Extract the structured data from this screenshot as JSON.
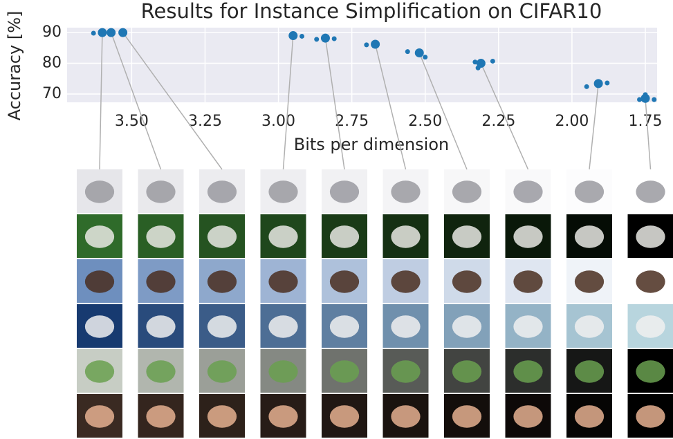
{
  "chart_data": {
    "type": "scatter",
    "title": "Results for Instance Simplification on CIFAR10",
    "x_label": "Bits per dimension",
    "y_label": "Accuracy [%]",
    "xlim": [
      3.72,
      1.71
    ],
    "ylim": [
      67.3,
      91.6
    ],
    "xticks": [
      {
        "value": 3.5,
        "label": "3.50"
      },
      {
        "value": 3.25,
        "label": "3.25"
      },
      {
        "value": 3.0,
        "label": "3.00"
      },
      {
        "value": 2.75,
        "label": "2.75"
      },
      {
        "value": 2.5,
        "label": "2.50"
      },
      {
        "value": 2.25,
        "label": "2.25"
      },
      {
        "value": 2.0,
        "label": "2.00"
      },
      {
        "value": 1.75,
        "label": "1.75"
      }
    ],
    "yticks": [
      70,
      80,
      90
    ],
    "grid": true,
    "series": [
      {
        "color": "#1f77b4",
        "x": [
          3.63,
          2.92,
          2.87,
          2.81,
          2.7,
          2.56,
          2.5,
          2.33,
          2.27,
          2.32,
          1.95,
          1.88,
          1.75,
          1.72,
          1.77
        ],
        "values": [
          89.8,
          88.8,
          87.8,
          88.0,
          86.0,
          83.8,
          82.0,
          80.4,
          80.7,
          78.5,
          72.4,
          73.6,
          69.8,
          68.2,
          68.2
        ]
      },
      {
        "color": "#1f77b4",
        "x": [
          3.6,
          3.57,
          3.53,
          2.95,
          2.84,
          2.67,
          2.52,
          2.31,
          1.91,
          1.75
        ],
        "values": [
          90.0,
          90.0,
          90.0,
          89.0,
          88.2,
          86.2,
          83.4,
          80.0,
          73.4,
          68.6
        ]
      }
    ]
  }
}
